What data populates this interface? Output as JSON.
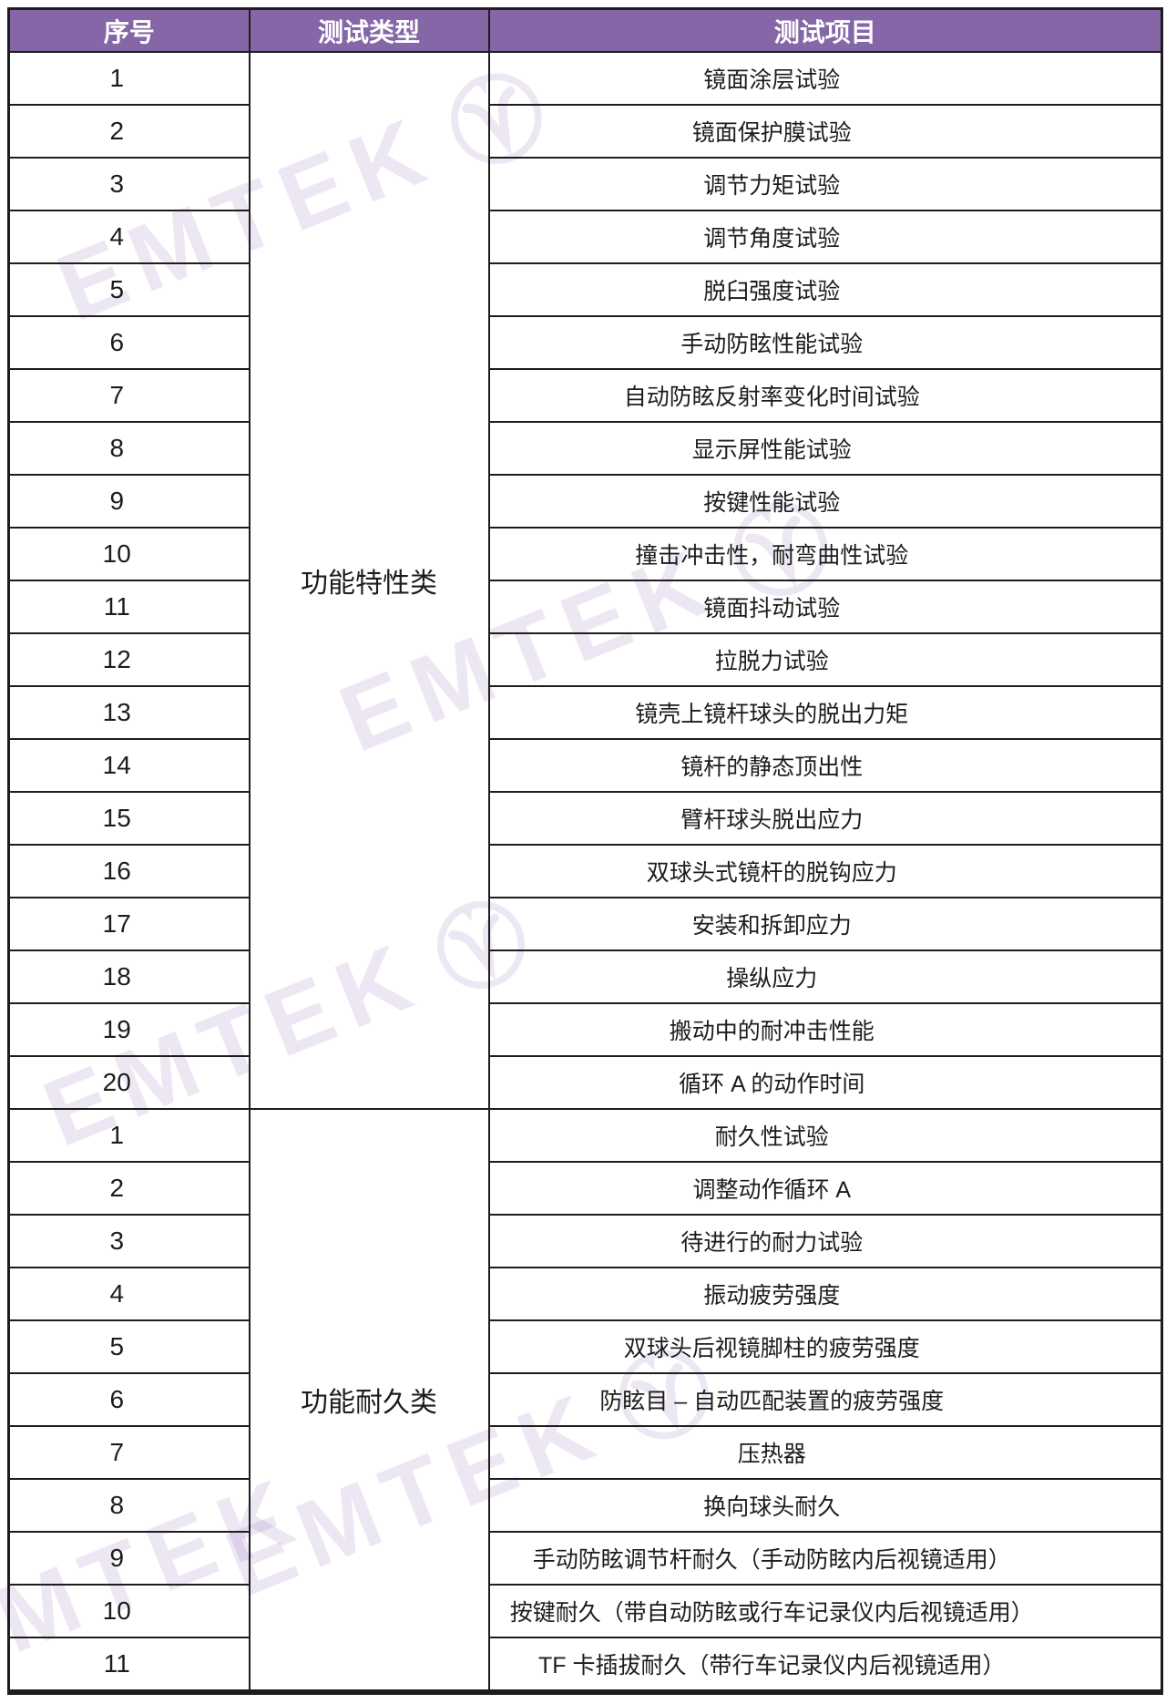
{
  "table": {
    "headers": [
      "序号",
      "测试类型",
      "测试项目"
    ],
    "sections": [
      {
        "type": "功能特性类",
        "rows": [
          {
            "no": "1",
            "name": "镜面涂层试验"
          },
          {
            "no": "2",
            "name": "镜面保护膜试验"
          },
          {
            "no": "3",
            "name": "调节力矩试验"
          },
          {
            "no": "4",
            "name": "调节角度试验"
          },
          {
            "no": "5",
            "name": "脱臼强度试验"
          },
          {
            "no": "6",
            "name": "手动防眩性能试验"
          },
          {
            "no": "7",
            "name": "自动防眩反射率变化时间试验"
          },
          {
            "no": "8",
            "name": "显示屏性能试验"
          },
          {
            "no": "9",
            "name": "按键性能试验"
          },
          {
            "no": "10",
            "name": "撞击冲击性，耐弯曲性试验"
          },
          {
            "no": "11",
            "name": "镜面抖动试验"
          },
          {
            "no": "12",
            "name": "拉脱力试验"
          },
          {
            "no": "13",
            "name": "镜壳上镜杆球头的脱出力矩"
          },
          {
            "no": "14",
            "name": "镜杆的静态顶出性"
          },
          {
            "no": "15",
            "name": "臂杆球头脱出应力"
          },
          {
            "no": "16",
            "name": "双球头式镜杆的脱钩应力"
          },
          {
            "no": "17",
            "name": "安装和拆卸应力"
          },
          {
            "no": "18",
            "name": "操纵应力"
          },
          {
            "no": "19",
            "name": "搬动中的耐冲击性能"
          },
          {
            "no": "20",
            "name": "循环 A 的动作时间"
          }
        ]
      },
      {
        "type": "功能耐久类",
        "rows": [
          {
            "no": "1",
            "name": "耐久性试验"
          },
          {
            "no": "2",
            "name": "调整动作循环 A"
          },
          {
            "no": "3",
            "name": "待进行的耐力试验"
          },
          {
            "no": "4",
            "name": "振动疲劳强度"
          },
          {
            "no": "5",
            "name": "双球头后视镜脚柱的疲劳强度"
          },
          {
            "no": "6",
            "name": "防眩目 – 自动匹配装置的疲劳强度"
          },
          {
            "no": "7",
            "name": "压热器"
          },
          {
            "no": "8",
            "name": "换向球头耐久"
          },
          {
            "no": "9",
            "name": "手动防眩调节杆耐久（手动防眩内后视镜适用）"
          },
          {
            "no": "10",
            "name": "按键耐久（带自动防眩或行车记录仪内后视镜适用）"
          },
          {
            "no": "11",
            "name": "TF 卡插拔耐久（带行车记录仪内后视镜适用）"
          }
        ]
      }
    ]
  },
  "watermark": {
    "text": "EMTEK"
  },
  "colors": {
    "header_bg": "#8566A7",
    "header_text": "#FFFFFF",
    "border": "#1D1D1D",
    "watermark": "#8A63B4"
  }
}
